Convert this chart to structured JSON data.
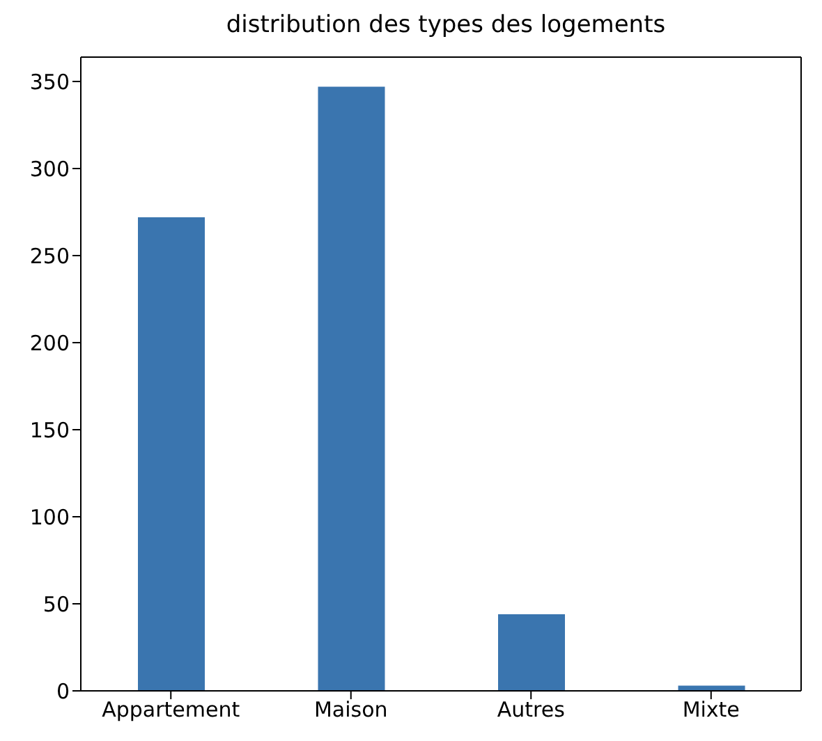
{
  "chart_data": {
    "type": "bar",
    "title": "distribution des types des logements",
    "categories": [
      "Appartement",
      "Maison",
      "Autres",
      "Mixte"
    ],
    "values": [
      272,
      347,
      44,
      3
    ],
    "color": "#3a75af",
    "ylim": [
      0,
      364
    ],
    "yticks": [
      0,
      50,
      100,
      150,
      200,
      250,
      300,
      350
    ],
    "grid": false
  }
}
